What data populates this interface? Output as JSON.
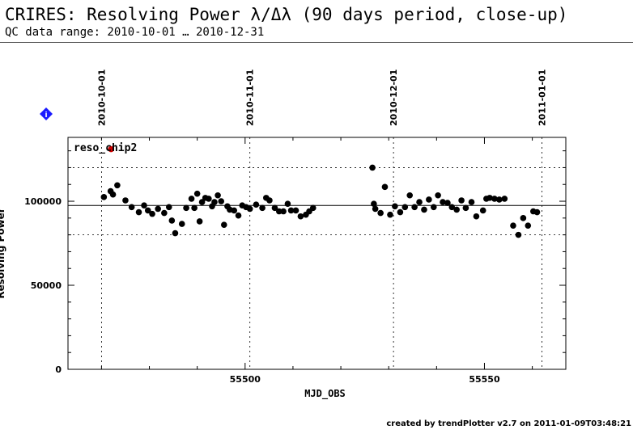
{
  "header": {
    "title": "CRIRES: Resolving Power λ/Δλ (90 days period, close-up)",
    "subtitle": "QC data range: 2010-10-01 … 2010-12-31"
  },
  "footer": {
    "text": "created by trendPlotter v2.7 on 2011-01-09T03:48:21"
  },
  "info_icon": {
    "name": "info-diamond-icon",
    "color": "#1a1aff"
  },
  "chart_data": {
    "type": "scatter",
    "series": [
      {
        "name": "reso_chip2",
        "color": "#000000",
        "x": [
          55470.5,
          55471.9,
          55472.4,
          55473.3,
          55475.0,
          55476.3,
          55477.8,
          55478.9,
          55479.7,
          55480.6,
          55481.8,
          55483.1,
          55484.1,
          55484.7,
          55485.4,
          55486.8,
          55487.7,
          55488.8,
          55489.4,
          55490.0,
          55490.5,
          55491.0,
          55491.7,
          55492.4,
          55493.1,
          55493.6,
          55494.3,
          55495.0,
          55495.6,
          55496.3,
          55496.8,
          55497.7,
          55498.6,
          55499.4,
          55500.2,
          55501.0,
          55502.3,
          55503.6,
          55504.4,
          55505.1,
          55506.2,
          55507.1,
          55508.0,
          55508.9,
          55509.6,
          55510.6,
          55511.6,
          55512.7,
          55513.4,
          55514.2,
          55526.6,
          55526.9,
          55527.2,
          55528.3,
          55529.2,
          55530.3,
          55531.3,
          55532.4,
          55533.4,
          55534.4,
          55535.4,
          55536.4,
          55537.4,
          55538.4,
          55539.4,
          55540.3,
          55541.3,
          55542.3,
          55543.2,
          55544.2,
          55545.2,
          55546.1,
          55547.3,
          55548.3,
          55549.7,
          55550.4,
          55551.1,
          55552.1,
          55553.1,
          55554.2,
          55556.0,
          55557.1,
          55558.1,
          55559.1,
          55560.2,
          55561.0
        ],
        "y": [
          102500,
          106000,
          104000,
          109500,
          100500,
          96500,
          93500,
          97500,
          94500,
          92500,
          95500,
          93000,
          96500,
          88500,
          81000,
          86500,
          96000,
          101500,
          96000,
          104500,
          88000,
          99500,
          102000,
          101500,
          97000,
          99500,
          103500,
          100000,
          86000,
          97000,
          95000,
          94500,
          91500,
          97500,
          96500,
          95500,
          98000,
          96000,
          102000,
          100500,
          96000,
          94000,
          94000,
          98500,
          94500,
          94500,
          91000,
          92000,
          94000,
          96000,
          120000,
          98500,
          95500,
          93000,
          108500,
          92000,
          97000,
          93500,
          96500,
          103500,
          96500,
          99500,
          95000,
          101000,
          96500,
          103500,
          99500,
          99000,
          96500,
          95000,
          100500,
          96000,
          99500,
          91000,
          94500,
          101500,
          102000,
          101500,
          101000,
          101500,
          85500,
          80000,
          90000,
          85500,
          94000,
          93500
        ]
      }
    ],
    "highlight_point": {
      "x": 55472.0,
      "y": 131000,
      "color": "#cc0000"
    },
    "xlabel": "MJD_OBS",
    "ylabel": "Resolving Power",
    "xlim": [
      55463,
      55567
    ],
    "ylim": [
      0,
      138000
    ],
    "x_ticks": [
      55500,
      55550
    ],
    "y_ticks": [
      0,
      50000,
      100000
    ],
    "y_tick_labels": [
      "0",
      "50000",
      "100000"
    ],
    "reference_line": 97500,
    "dotted_levels": [
      80000,
      120000
    ],
    "date_marks": [
      {
        "x": 55470,
        "label": "2010-10-01"
      },
      {
        "x": 55501,
        "label": "2010-11-01"
      },
      {
        "x": 55531,
        "label": "2010-12-01"
      },
      {
        "x": 55562,
        "label": "2011-01-01"
      }
    ],
    "grid": false
  }
}
